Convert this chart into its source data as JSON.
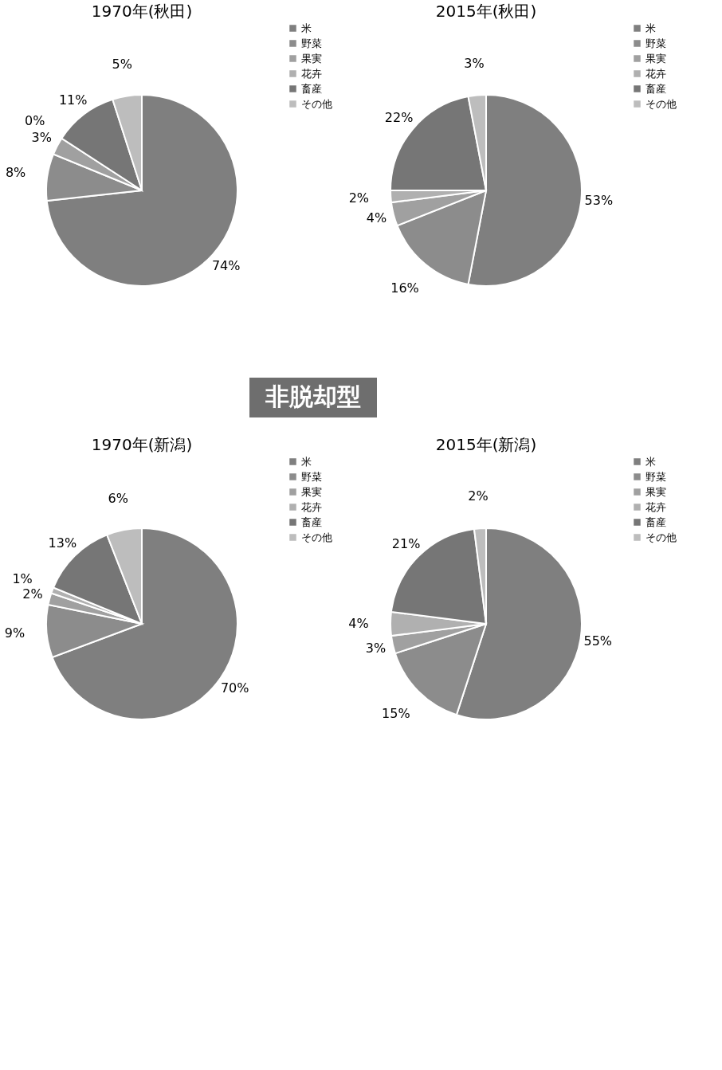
{
  "chart_data": [
    {
      "type": "pie",
      "title": "1970年(秋田)",
      "categories": [
        "米",
        "野菜",
        "果実",
        "花卉",
        "畜産",
        "その他"
      ],
      "values": [
        74,
        8,
        3,
        0,
        11,
        5
      ],
      "value_labels": [
        "74%",
        "8%",
        "3%",
        "0%",
        "11%",
        "5%"
      ],
      "colors": [
        "#7f7f7f",
        "#8c8c8c",
        "#a0a0a0",
        "#b0b0b0",
        "#767676",
        "#bdbdbd"
      ],
      "legend": "right"
    },
    {
      "type": "pie",
      "title": "2015年(秋田)",
      "categories": [
        "米",
        "野菜",
        "果実",
        "花卉",
        "畜産",
        "その他"
      ],
      "values": [
        53,
        16,
        4,
        2,
        22,
        3
      ],
      "value_labels": [
        "53%",
        "16%",
        "4%",
        "2%",
        "22%",
        "3%"
      ],
      "colors": [
        "#7f7f7f",
        "#8c8c8c",
        "#a0a0a0",
        "#b0b0b0",
        "#767676",
        "#bdbdbd"
      ],
      "legend": "right"
    },
    {
      "type": "other",
      "annotations": [
        "非脱却型"
      ]
    },
    {
      "type": "pie",
      "title": "1970年(新潟)",
      "categories": [
        "米",
        "野菜",
        "果実",
        "花卉",
        "畜産",
        "その他"
      ],
      "values": [
        70,
        9,
        2,
        1,
        13,
        6
      ],
      "value_labels": [
        "70%",
        "9%",
        "2%",
        "1%",
        "13%",
        "6%"
      ],
      "colors": [
        "#7f7f7f",
        "#8c8c8c",
        "#a0a0a0",
        "#b0b0b0",
        "#767676",
        "#bdbdbd"
      ],
      "legend": "right"
    },
    {
      "type": "pie",
      "title": "2015年(新潟)",
      "categories": [
        "米",
        "野菜",
        "果実",
        "花卉",
        "畜産",
        "その他"
      ],
      "values": [
        55,
        15,
        3,
        4,
        21,
        2
      ],
      "value_labels": [
        "55%",
        "15%",
        "3%",
        "4%",
        "21%",
        "2%"
      ],
      "colors": [
        "#7f7f7f",
        "#8c8c8c",
        "#a0a0a0",
        "#b0b0b0",
        "#767676",
        "#bdbdbd"
      ],
      "legend": "right"
    }
  ]
}
